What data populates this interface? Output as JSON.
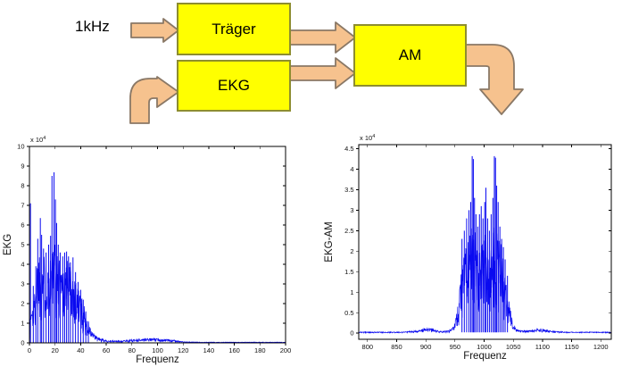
{
  "page": {
    "background": "#ffffff"
  },
  "diagram": {
    "input_label": "1kHz",
    "blocks": {
      "traeger": "Träger",
      "ekg": "EKG",
      "am": "AM"
    },
    "colors": {
      "block_fill": "#ffff00",
      "block_border": "#8d8d2f",
      "arrow_fill": "#f6c28e",
      "arrow_border": "#8a7866",
      "text": "#000000"
    }
  },
  "chart_data": [
    {
      "type": "line",
      "subtype": "magnitude-spectrum",
      "title": "",
      "xlabel": "Frequenz",
      "ylabel": "EKG",
      "y_exponent": {
        "mantissa": "x 10",
        "exp": "4"
      },
      "xlim": [
        0,
        200
      ],
      "ylim": [
        0,
        10
      ],
      "xticks": [
        0,
        20,
        40,
        60,
        80,
        100,
        120,
        140,
        160,
        180,
        200
      ],
      "yticks": [
        0,
        1,
        2,
        3,
        4,
        5,
        6,
        7,
        8,
        9,
        10
      ],
      "grid": false,
      "legend": null,
      "line_color": "#0a0af0",
      "y_unit_scale": 10000,
      "noise_seed": 1337,
      "samples": 850,
      "envelope": {
        "x": [
          0,
          1,
          2,
          4,
          6,
          8,
          10,
          12,
          14,
          16,
          18,
          20,
          22,
          24,
          26,
          28,
          30,
          32,
          34,
          36,
          38,
          40,
          42,
          44,
          46,
          48,
          50,
          53,
          56,
          60,
          65,
          70,
          75,
          80,
          85,
          90,
          95,
          100,
          105,
          110,
          114,
          118,
          122,
          126,
          135,
          150,
          200
        ],
        "upper": [
          0.25,
          2.2,
          2.0,
          2.6,
          4.6,
          5.0,
          4.8,
          4.4,
          4.2,
          4.6,
          5.0,
          5.1,
          4.6,
          4.3,
          4.2,
          4.4,
          4.5,
          4.1,
          3.8,
          3.4,
          3.0,
          2.6,
          2.1,
          1.6,
          1.1,
          0.75,
          0.5,
          0.32,
          0.22,
          0.15,
          0.12,
          0.12,
          0.14,
          0.18,
          0.21,
          0.23,
          0.24,
          0.22,
          0.2,
          0.17,
          0.14,
          0.09,
          0.06,
          0.05,
          0.04,
          0.04,
          0.04
        ],
        "lower": [
          0.02,
          0.25,
          0.3,
          0.4,
          0.8,
          1.0,
          1.05,
          0.95,
          0.9,
          1.0,
          1.1,
          1.15,
          1.05,
          1.0,
          0.95,
          1.0,
          1.0,
          0.9,
          0.85,
          0.75,
          0.65,
          0.5,
          0.38,
          0.28,
          0.18,
          0.11,
          0.07,
          0.05,
          0.03,
          0.02,
          0.02,
          0.02,
          0.03,
          0.04,
          0.05,
          0.06,
          0.06,
          0.06,
          0.05,
          0.04,
          0.03,
          0.02,
          0.015,
          0.01,
          0.01,
          0.01,
          0.01
        ]
      },
      "peaks": [
        [
          0.8,
          7.1
        ],
        [
          3,
          2.9
        ],
        [
          5,
          3.9
        ],
        [
          6.5,
          5.3
        ],
        [
          8.5,
          6.35
        ],
        [
          9.5,
          5.5
        ],
        [
          11,
          4.8
        ],
        [
          13,
          4.6
        ],
        [
          15,
          5.0
        ],
        [
          16.5,
          5.45
        ],
        [
          17.6,
          8.5
        ],
        [
          19.2,
          8.68
        ],
        [
          20.3,
          7.3
        ],
        [
          21.2,
          6.1
        ],
        [
          22.5,
          5.0
        ],
        [
          24,
          4.6
        ],
        [
          26,
          4.4
        ],
        [
          27.5,
          4.6
        ],
        [
          29,
          4.65
        ],
        [
          30.5,
          4.4
        ],
        [
          32,
          4.1
        ],
        [
          34,
          4.35
        ],
        [
          36,
          3.6
        ],
        [
          38,
          3.1
        ],
        [
          40,
          2.7
        ],
        [
          42,
          2.2
        ],
        [
          44,
          1.6
        ],
        [
          46,
          1.1
        ]
      ]
    },
    {
      "type": "line",
      "subtype": "magnitude-spectrum",
      "title": "",
      "xlabel": "Frequenz",
      "ylabel": "EKG-AM",
      "y_exponent": {
        "mantissa": "x 10",
        "exp": "4"
      },
      "xlim": [
        785,
        1218
      ],
      "ylim": [
        -0.15,
        4.6
      ],
      "xticks": [
        800,
        850,
        900,
        950,
        1000,
        1050,
        1100,
        1150,
        1200
      ],
      "yticks": [
        0,
        0.5,
        1,
        1.5,
        2,
        2.5,
        3,
        3.5,
        4,
        4.5
      ],
      "grid": false,
      "legend": null,
      "line_color": "#0a0af0",
      "y_unit_scale": 10000,
      "noise_seed": 7331,
      "samples": 900,
      "envelope": {
        "x": [
          785,
          860,
          875,
          885,
          890,
          895,
          900,
          905,
          910,
          915,
          920,
          930,
          940,
          946,
          950,
          954,
          958,
          962,
          966,
          970,
          974,
          978,
          981,
          984,
          987,
          990,
          993,
          996,
          1000,
          1003,
          1006,
          1009,
          1012,
          1015,
          1018,
          1021,
          1024,
          1027,
          1030,
          1034,
          1038,
          1042,
          1046,
          1050,
          1055,
          1062,
          1072,
          1082,
          1088,
          1094,
          1100,
          1106,
          1112,
          1120,
          1130,
          1145,
          1218
        ],
        "upper": [
          0.03,
          0.03,
          0.05,
          0.07,
          0.09,
          0.11,
          0.12,
          0.13,
          0.12,
          0.1,
          0.07,
          0.05,
          0.07,
          0.15,
          0.3,
          0.6,
          1.1,
          1.7,
          2.0,
          2.15,
          2.3,
          2.6,
          2.9,
          2.6,
          2.2,
          1.9,
          2.1,
          2.3,
          2.4,
          2.7,
          2.3,
          1.9,
          2.1,
          2.6,
          2.9,
          2.8,
          2.5,
          2.3,
          2.2,
          1.9,
          1.4,
          0.9,
          0.5,
          0.25,
          0.12,
          0.07,
          0.06,
          0.08,
          0.1,
          0.12,
          0.11,
          0.09,
          0.07,
          0.05,
          0.04,
          0.03,
          0.03
        ],
        "lower": [
          0.005,
          0.005,
          0.01,
          0.01,
          0.02,
          0.02,
          0.03,
          0.03,
          0.02,
          0.02,
          0.01,
          0.01,
          0.01,
          0.03,
          0.06,
          0.1,
          0.2,
          0.3,
          0.35,
          0.4,
          0.45,
          0.5,
          0.55,
          0.5,
          0.4,
          0.3,
          0.35,
          0.4,
          0.4,
          0.45,
          0.35,
          0.3,
          0.35,
          0.45,
          0.55,
          0.5,
          0.45,
          0.4,
          0.35,
          0.3,
          0.2,
          0.12,
          0.06,
          0.03,
          0.02,
          0.01,
          0.01,
          0.01,
          0.02,
          0.02,
          0.02,
          0.01,
          0.01,
          0.005,
          0.005,
          0.005,
          0.005
        ]
      },
      "peaks": [
        [
          962,
          2.3
        ],
        [
          966,
          2.5
        ],
        [
          970,
          2.8
        ],
        [
          974,
          3.0
        ],
        [
          977,
          3.2
        ],
        [
          979.5,
          4.32
        ],
        [
          981.5,
          4.25
        ],
        [
          983.5,
          3.3
        ],
        [
          986,
          2.9
        ],
        [
          989,
          2.6
        ],
        [
          992,
          2.9
        ],
        [
          995,
          3.1
        ],
        [
          998,
          2.8
        ],
        [
          1001,
          3.2
        ],
        [
          1003,
          3.55
        ],
        [
          1006,
          2.8
        ],
        [
          1009,
          2.5
        ],
        [
          1012,
          2.9
        ],
        [
          1015,
          3.3
        ],
        [
          1017.5,
          4.32
        ],
        [
          1019.5,
          4.28
        ],
        [
          1021.5,
          3.6
        ],
        [
          1024,
          3.2
        ],
        [
          1027,
          2.6
        ],
        [
          1030,
          2.3
        ],
        [
          1033,
          2.1
        ],
        [
          1036,
          1.8
        ],
        [
          1040,
          1.4
        ]
      ]
    }
  ]
}
